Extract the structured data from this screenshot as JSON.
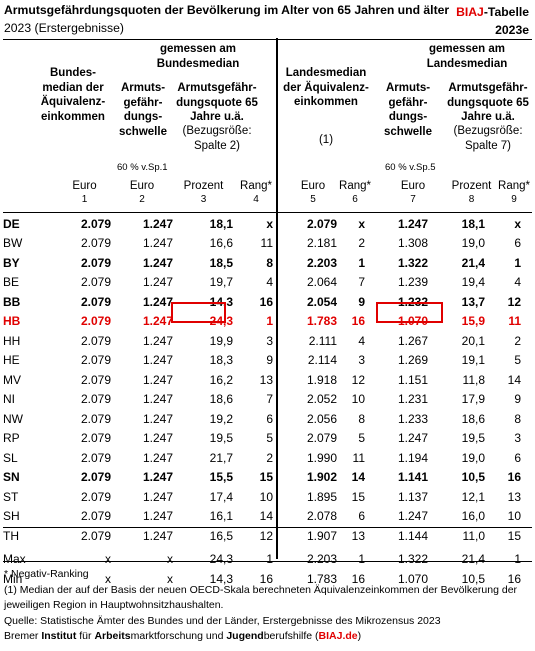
{
  "title": "Armutsgefährdungsquoten der Bevölkerung im Alter von 65 Jahren und älter",
  "subtitle_year": "2023",
  "subtitle_note": "(Erstergebnisse)",
  "badge": {
    "prefix": "BIAJ",
    "suffix": "-Tabelle",
    "id": "2023e"
  },
  "group_headers": {
    "bundesmedian": "gemessen am Bundesmedian",
    "landesmedian": "gemessen am Landesmedian"
  },
  "columns": {
    "bundesmedian": "Bundes-median der Äquivalenz-einkommen",
    "schwelle_bund": "Armuts-gefähr-dungs-schwelle",
    "quote_bund": "Armutsgefähr-dungsquote 65 Jahre u.ä.",
    "quote_bund_ref": "(Bezugsröße: Spalte 2)",
    "landesmedian": "Landesmedian der Äquivalenz-einkommen",
    "landesmedian_note": "(1)",
    "schwelle_land": "Armuts-gefähr-dungs-schwelle",
    "quote_land": "Armutsgefähr-dungsquote 65 Jahre u.ä.",
    "quote_land_ref": "(Bezugsröße: Spalte 7)"
  },
  "notes": {
    "sp1": "60 % v.Sp.1",
    "sp5": "60 % v.Sp.5"
  },
  "units": [
    "Euro",
    "Euro",
    "Prozent",
    "Rang*",
    "Euro",
    "Rang*",
    "Euro",
    "Prozent",
    "Rang*"
  ],
  "col_numbers": [
    "1",
    "2",
    "3",
    "4",
    "5",
    "6",
    "7",
    "8",
    "9"
  ],
  "rows": [
    {
      "land": "DE",
      "bm": "2.079",
      "asb": "1.247",
      "aqb": "18,1",
      "rb": "x",
      "lm": "2.079",
      "rlm": "x",
      "asl": "1.247",
      "aql": "18,1",
      "rl": "x",
      "style": "bold"
    },
    {
      "land": "BW",
      "bm": "2.079",
      "asb": "1.247",
      "aqb": "16,6",
      "rb": "11",
      "lm": "2.181",
      "rlm": "2",
      "asl": "1.308",
      "aql": "19,0",
      "rl": "6",
      "style": ""
    },
    {
      "land": "BY",
      "bm": "2.079",
      "asb": "1.247",
      "aqb": "18,5",
      "rb": "8",
      "lm": "2.203",
      "rlm": "1",
      "asl": "1.322",
      "aql": "21,4",
      "rl": "1",
      "style": "bold"
    },
    {
      "land": "BE",
      "bm": "2.079",
      "asb": "1.247",
      "aqb": "19,7",
      "rb": "4",
      "lm": "2.064",
      "rlm": "7",
      "asl": "1.239",
      "aql": "19,4",
      "rl": "4",
      "style": ""
    },
    {
      "land": "BB",
      "bm": "2.079",
      "asb": "1.247",
      "aqb": "14,3",
      "rb": "16",
      "lm": "2.054",
      "rlm": "9",
      "asl": "1.232",
      "aql": "13,7",
      "rl": "12",
      "style": "bold"
    },
    {
      "land": "HB",
      "bm": "2.079",
      "asb": "1.247",
      "aqb": "24,3",
      "rb": "1",
      "lm": "1.783",
      "rlm": "16",
      "asl": "1.070",
      "aql": "15,9",
      "rl": "11",
      "style": "red"
    },
    {
      "land": "HH",
      "bm": "2.079",
      "asb": "1.247",
      "aqb": "19,9",
      "rb": "3",
      "lm": "2.111",
      "rlm": "4",
      "asl": "1.267",
      "aql": "20,1",
      "rl": "2",
      "style": ""
    },
    {
      "land": "HE",
      "bm": "2.079",
      "asb": "1.247",
      "aqb": "18,3",
      "rb": "9",
      "lm": "2.114",
      "rlm": "3",
      "asl": "1.269",
      "aql": "19,1",
      "rl": "5",
      "style": ""
    },
    {
      "land": "MV",
      "bm": "2.079",
      "asb": "1.247",
      "aqb": "16,2",
      "rb": "13",
      "lm": "1.918",
      "rlm": "12",
      "asl": "1.151",
      "aql": "11,8",
      "rl": "14",
      "style": ""
    },
    {
      "land": "NI",
      "bm": "2.079",
      "asb": "1.247",
      "aqb": "18,6",
      "rb": "7",
      "lm": "2.052",
      "rlm": "10",
      "asl": "1.231",
      "aql": "17,9",
      "rl": "9",
      "style": ""
    },
    {
      "land": "NW",
      "bm": "2.079",
      "asb": "1.247",
      "aqb": "19,2",
      "rb": "6",
      "lm": "2.056",
      "rlm": "8",
      "asl": "1.233",
      "aql": "18,6",
      "rl": "8",
      "style": ""
    },
    {
      "land": "RP",
      "bm": "2.079",
      "asb": "1.247",
      "aqb": "19,5",
      "rb": "5",
      "lm": "2.079",
      "rlm": "5",
      "asl": "1.247",
      "aql": "19,5",
      "rl": "3",
      "style": ""
    },
    {
      "land": "SL",
      "bm": "2.079",
      "asb": "1.247",
      "aqb": "21,7",
      "rb": "2",
      "lm": "1.990",
      "rlm": "11",
      "asl": "1.194",
      "aql": "19,0",
      "rl": "6",
      "style": ""
    },
    {
      "land": "SN",
      "bm": "2.079",
      "asb": "1.247",
      "aqb": "15,5",
      "rb": "15",
      "lm": "1.902",
      "rlm": "14",
      "asl": "1.141",
      "aql": "10,5",
      "rl": "16",
      "style": "bold"
    },
    {
      "land": "ST",
      "bm": "2.079",
      "asb": "1.247",
      "aqb": "17,4",
      "rb": "10",
      "lm": "1.895",
      "rlm": "15",
      "asl": "1.137",
      "aql": "12,1",
      "rl": "13",
      "style": ""
    },
    {
      "land": "SH",
      "bm": "2.079",
      "asb": "1.247",
      "aqb": "16,1",
      "rb": "14",
      "lm": "2.078",
      "rlm": "6",
      "asl": "1.247",
      "aql": "16,0",
      "rl": "10",
      "style": ""
    },
    {
      "land": "TH",
      "bm": "2.079",
      "asb": "1.247",
      "aqb": "16,5",
      "rb": "12",
      "lm": "1.907",
      "rlm": "13",
      "asl": "1.144",
      "aql": "11,0",
      "rl": "15",
      "style": ""
    }
  ],
  "summary_rows": [
    {
      "land": "Max",
      "bm": "x",
      "asb": "x",
      "aqb": "24,3",
      "rb": "1",
      "lm": "2.203",
      "rlm": "1",
      "asl": "1.322",
      "aql": "21,4",
      "rl": "1",
      "style": ""
    },
    {
      "land": "Min",
      "bm": "x",
      "asb": "x",
      "aqb": "14,3",
      "rb": "16",
      "lm": "1.783",
      "rlm": "16",
      "asl": "1.070",
      "aql": "10,5",
      "rl": "16",
      "style": ""
    }
  ],
  "footnotes": {
    "ranking": "* Negativ-Ranking",
    "median": "(1) Median der auf der Basis der neuen OECD-Skala berechneten Äquivalenzeinkommen der Bevölkerung der jeweiligen Region in Hauptwohnsitzhaushalten.",
    "source": "Quelle: Statistische Ämter des Bundes und der Länder,  Erstergebnisse des Mikrozensus 2023",
    "institute_1": "Bremer ",
    "institute_2": "Institut",
    "institute_3": " für ",
    "institute_4": "Arbeits",
    "institute_5": "marktforschung und ",
    "institute_6": "Jugend",
    "institute_7": "berufshilfe (",
    "institute_8": "BIAJ.de",
    "institute_9": ")"
  },
  "colors": {
    "highlight": "#e00000",
    "text": "#000000",
    "background": "#ffffff"
  }
}
